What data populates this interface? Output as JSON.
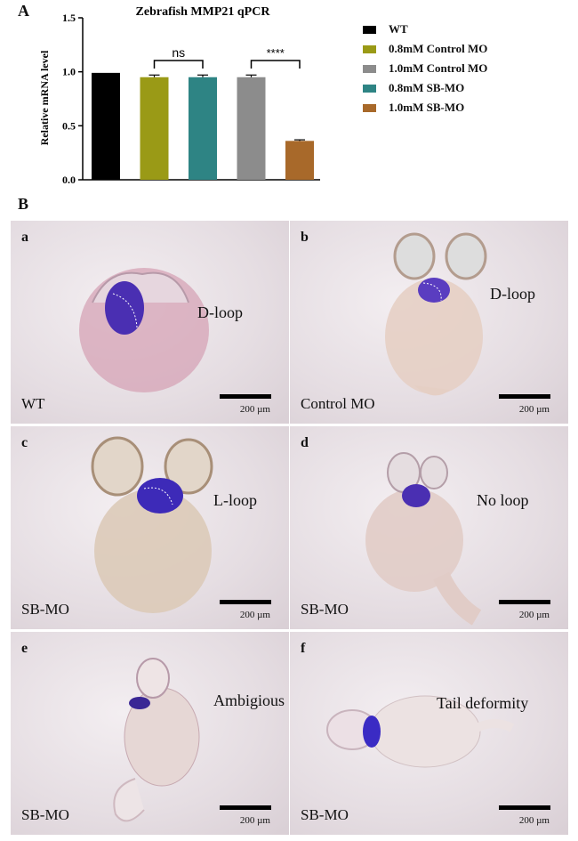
{
  "panel_a_letter": "A",
  "panel_b_letter": "B",
  "chart_data": {
    "type": "bar",
    "title": "Zebrafish MMP21 qPCR",
    "ylabel": "Relative mRNA level",
    "xlabel": "",
    "ylim": [
      0,
      1.5
    ],
    "yticks": [
      "0.0",
      "0.5",
      "1.0",
      "1.5"
    ],
    "categories": [
      "WT",
      "0.8mM Control MO",
      "0.8mM SB-MO",
      "1.0mM Control MO",
      "1.0mM SB-MO"
    ],
    "values": [
      0.99,
      0.95,
      0.95,
      0.95,
      0.36
    ],
    "errors": [
      0.0,
      0.02,
      0.02,
      0.02,
      0.01
    ],
    "colors": [
      "#000000",
      "#9a9a16",
      "#2e8484",
      "#8c8c8c",
      "#a8692a"
    ],
    "legend_placement": "right",
    "significance": [
      {
        "from": 1,
        "to": 2,
        "label": "ns"
      },
      {
        "from": 3,
        "to": 4,
        "label": "****"
      }
    ],
    "legend": [
      {
        "label": "WT",
        "color": "#000000"
      },
      {
        "label": "0.8mM Control MO",
        "color": "#9a9a16"
      },
      {
        "label": "1.0mM Control MO",
        "color": "#8c8c8c"
      },
      {
        "label": "0.8mM SB-MO",
        "color": "#2e8484"
      },
      {
        "label": "1.0mM SB-MO",
        "color": "#a8692a"
      }
    ]
  },
  "panels": [
    {
      "letter": "a",
      "treatment": "WT",
      "phenotype": "D-loop",
      "scale": "200 µm"
    },
    {
      "letter": "b",
      "treatment": "Control MO",
      "phenotype": "D-loop",
      "scale": "200 µm"
    },
    {
      "letter": "c",
      "treatment": "SB-MO",
      "phenotype": "L-loop",
      "scale": "200 µm"
    },
    {
      "letter": "d",
      "treatment": "SB-MO",
      "phenotype": "No loop",
      "scale": "200 µm"
    },
    {
      "letter": "e",
      "treatment": "SB-MO",
      "phenotype": "Ambigious",
      "scale": "200 µm"
    },
    {
      "letter": "f",
      "treatment": "SB-MO",
      "phenotype": "Tail deformity",
      "scale": "200 µm"
    }
  ]
}
